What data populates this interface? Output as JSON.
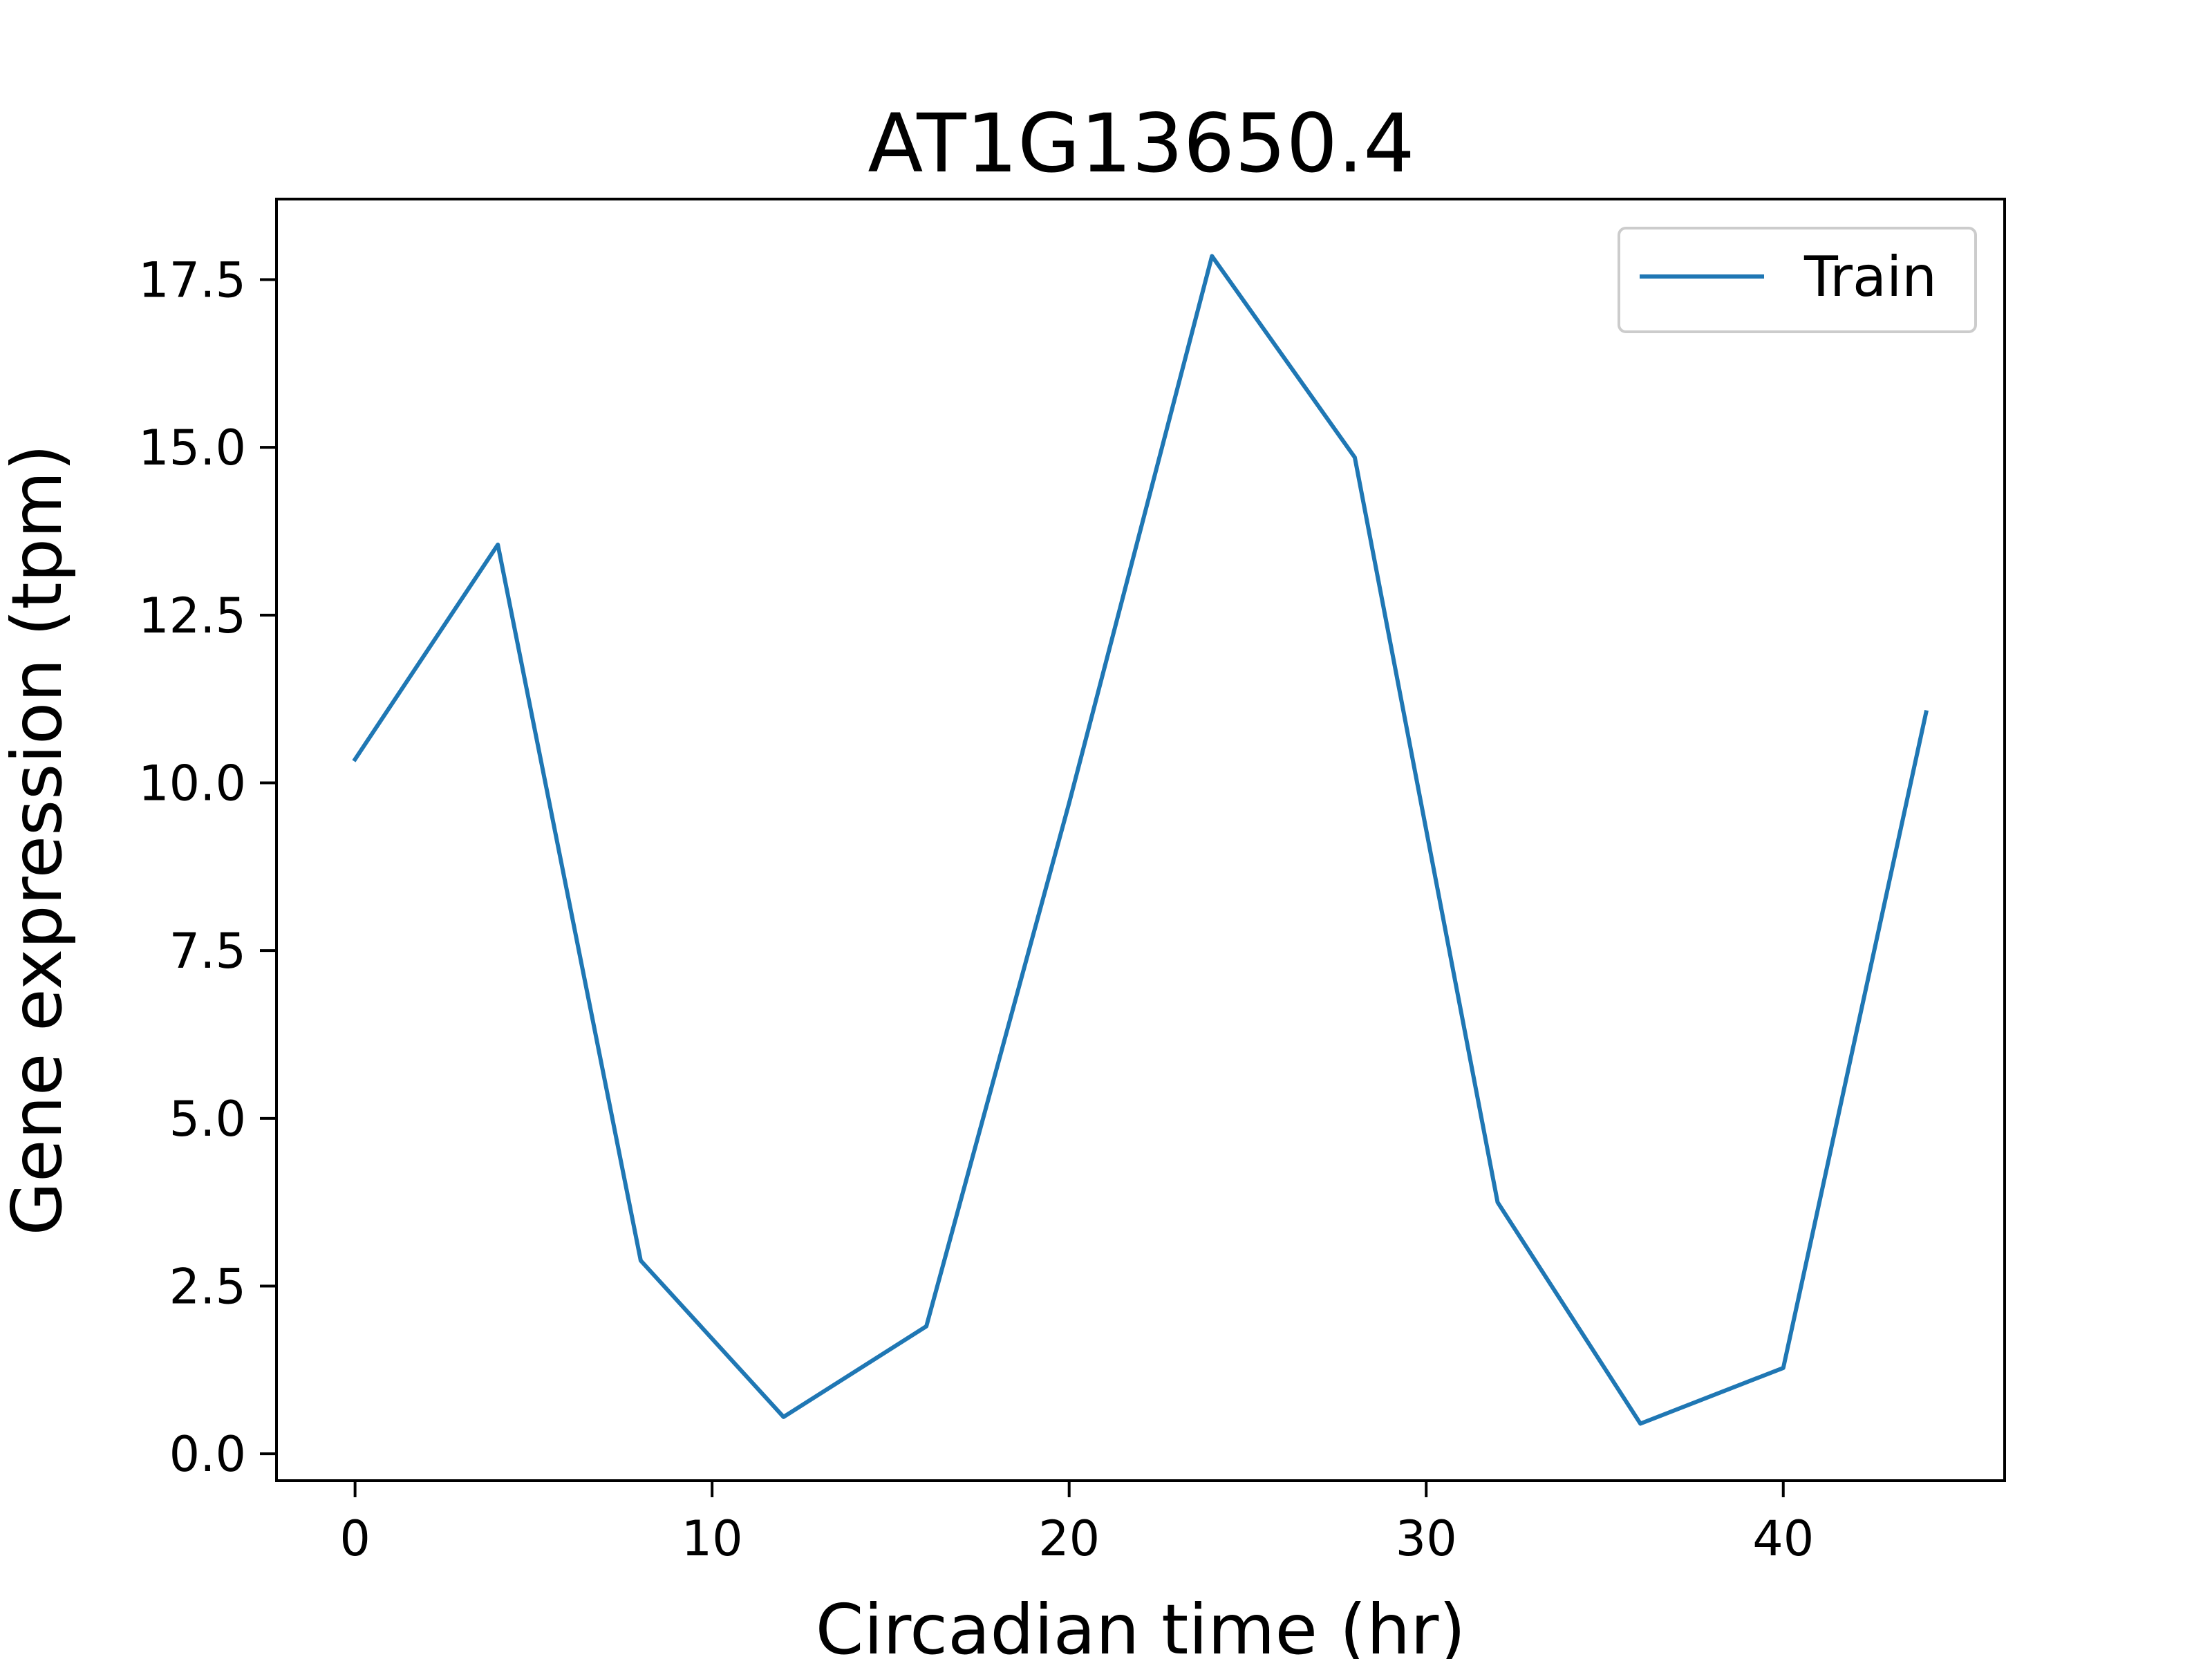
{
  "chart_data": {
    "type": "line",
    "title": "AT1G13650.4",
    "xlabel": "Circadian time (hr)",
    "ylabel": "Gene expression (tpm)",
    "xlim": [
      -2.2,
      46.2
    ],
    "ylim": [
      -0.4,
      18.7
    ],
    "xticks": [
      0,
      10,
      20,
      30,
      40
    ],
    "xtick_labels": [
      "0",
      "10",
      "20",
      "30",
      "40"
    ],
    "yticks": [
      0,
      2.5,
      5,
      7.5,
      10,
      12.5,
      15,
      17.5
    ],
    "ytick_labels": [
      "0.0",
      "2.5",
      "5.0",
      "7.5",
      "10.0",
      "12.5",
      "15.0",
      "17.5"
    ],
    "grid": false,
    "legend_position": "top-right",
    "series": [
      {
        "name": "Train",
        "color": "#1f77b4",
        "x": [
          0,
          4,
          8,
          12,
          16,
          20,
          24,
          28,
          32,
          36,
          40,
          44
        ],
        "y": [
          10.35,
          13.55,
          2.88,
          0.55,
          1.9,
          9.7,
          17.85,
          14.85,
          3.75,
          0.45,
          1.28,
          11.05
        ]
      }
    ]
  }
}
